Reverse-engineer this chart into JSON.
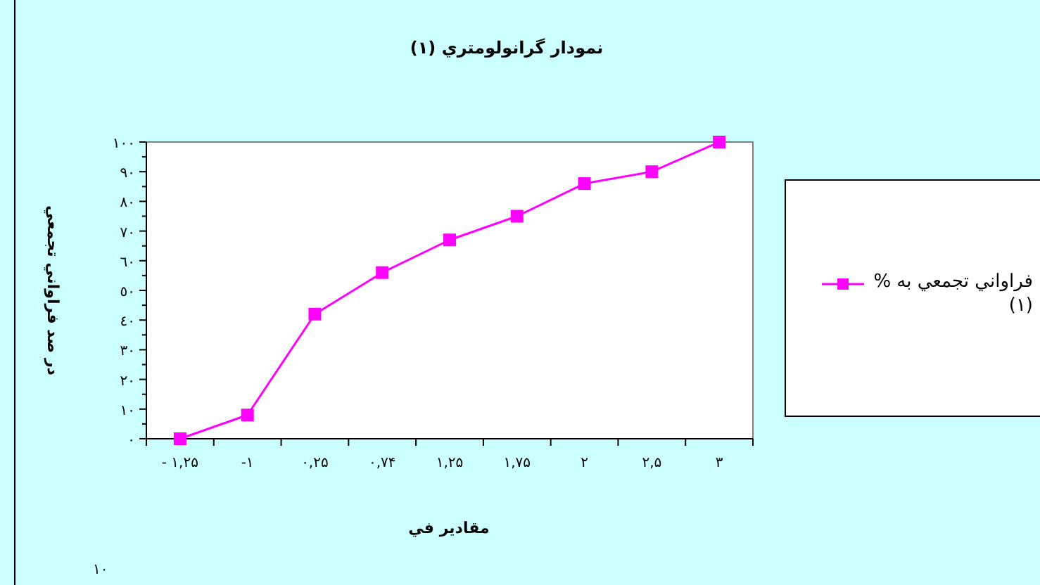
{
  "chart_data": {
    "type": "line",
    "title": "نمودار گرانولومتري (۱)",
    "xlabel": "مقادير في",
    "ylabel": "در صد فراواني تجمعي",
    "categories": [
      "- ۱,۲۵",
      "-۱",
      "۰,۲۵",
      "۰,۷۴",
      "۱,۲۵",
      "۱,۷۵",
      "۲",
      "۲,۵",
      "۳"
    ],
    "series": [
      {
        "name": "فراواني تجمعي به %(۱)",
        "color": "#ff00ff",
        "values": [
          0,
          8,
          42,
          56,
          67,
          75,
          86,
          90,
          100
        ]
      }
    ],
    "ylim": [
      0,
      100
    ],
    "yticks": [
      {
        "value": 0,
        "label": "٠"
      },
      {
        "value": 10,
        "label": "١٠"
      },
      {
        "value": 20,
        "label": "٢٠"
      },
      {
        "value": 30,
        "label": "٣٠"
      },
      {
        "value": 40,
        "label": "٤٠"
      },
      {
        "value": 50,
        "label": "٥٠"
      },
      {
        "value": 60,
        "label": "٦٠"
      },
      {
        "value": 70,
        "label": "٧٠"
      },
      {
        "value": 80,
        "label": "٨٠"
      },
      {
        "value": 90,
        "label": "٩٠"
      },
      {
        "value": 100,
        "label": "١٠٠"
      }
    ],
    "annotations": [
      "۱۰"
    ],
    "grid": false,
    "legend": "right",
    "marker": "square",
    "line_style": "solid"
  }
}
